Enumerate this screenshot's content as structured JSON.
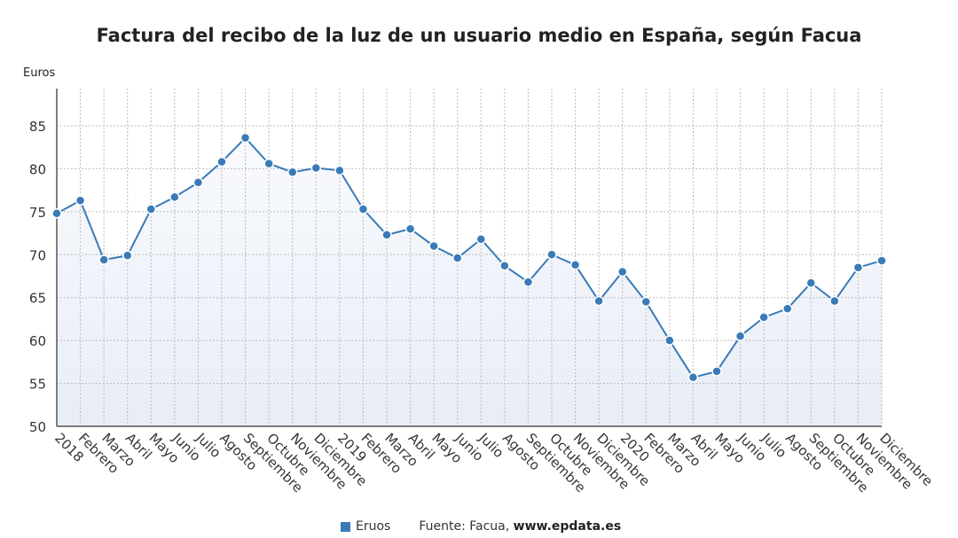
{
  "chart_data": {
    "type": "line",
    "title": "Factura del recibo de la luz de un usuario medio en España, según Facua",
    "ylabel": "Euros",
    "xlabel": "",
    "ylim": [
      50,
      89
    ],
    "yticks": [
      50,
      55,
      60,
      65,
      70,
      75,
      80,
      85
    ],
    "grid": true,
    "legend_position": "bottom",
    "categories": [
      "2018",
      "Febrero",
      "Marzo",
      "Abril",
      "Mayo",
      "Junio",
      "Julio",
      "Agosto",
      "Septiembre",
      "Octubre",
      "Noviembre",
      "Diciembre",
      "2019",
      "Febrero",
      "Marzo",
      "Abril",
      "Mayo",
      "Junio",
      "Julio",
      "Agosto",
      "Septiembre",
      "Octubre",
      "Noviembre",
      "Diciembre",
      "2020",
      "Febrero",
      "Marzo",
      "Abril",
      "Mayo",
      "Junio",
      "Julio",
      "Agosto",
      "Septiembre",
      "Octubre",
      "Noviembre",
      "Diciembre"
    ],
    "series": [
      {
        "name": "Eruos",
        "color": "#3a7ab8",
        "values": [
          74.8,
          76.3,
          69.4,
          69.9,
          75.3,
          76.7,
          78.4,
          80.8,
          83.6,
          80.6,
          79.6,
          80.1,
          79.8,
          75.3,
          72.3,
          73.0,
          71.0,
          69.6,
          71.8,
          68.7,
          66.8,
          70.0,
          68.8,
          64.6,
          68.0,
          64.5,
          60.0,
          55.7,
          56.4,
          60.5,
          62.7,
          63.7,
          66.7,
          64.6,
          68.5,
          69.3
        ]
      }
    ]
  },
  "legend": {
    "label": "Eruos"
  },
  "source": {
    "prefix": "Fuente: Facua,",
    "site": "www.epdata.es"
  }
}
